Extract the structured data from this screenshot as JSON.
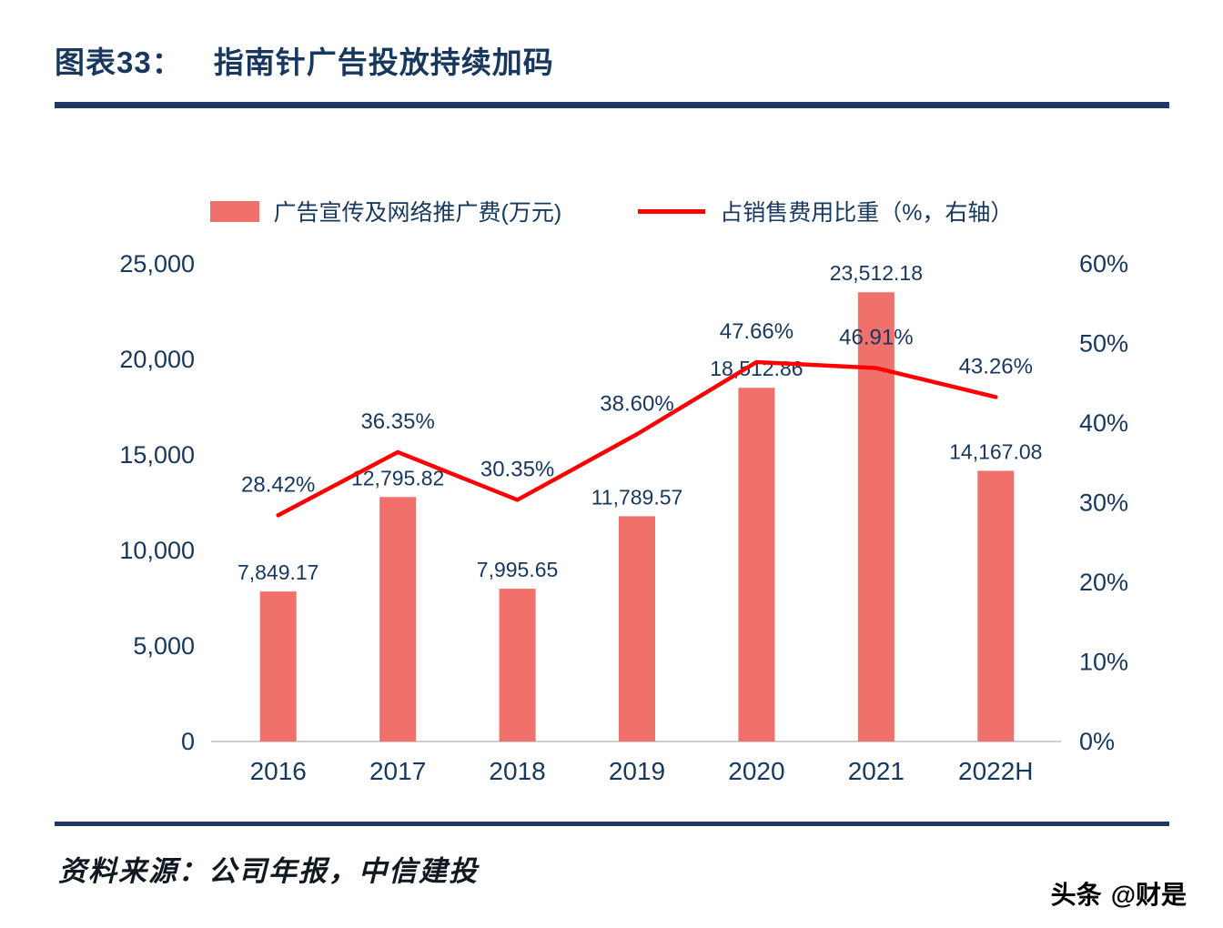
{
  "header": {
    "tag": "图表33：",
    "title": "指南针广告投放持续加码"
  },
  "source": "资料来源：公司年报，中信建投",
  "watermark": {
    "logo": "头条",
    "handle": "@财是"
  },
  "colors": {
    "accent_navy": "#17375E",
    "rule_navy": "#1F3864",
    "bar": "#F0716B",
    "line": "#FF0000",
    "axis_line": "#BDBDBD"
  },
  "chart_data": {
    "type": "bar",
    "title": "指南针广告投放持续加码",
    "categories": [
      "2016",
      "2017",
      "2018",
      "2019",
      "2020",
      "2021",
      "2022H"
    ],
    "series": [
      {
        "name": "广告宣传及网络推广费(万元)",
        "type": "bar",
        "axis": "left",
        "values": [
          7849.17,
          12795.82,
          7995.65,
          11789.57,
          18512.86,
          23512.18,
          14167.08
        ],
        "labels": [
          "7,849.17",
          "12,795.82",
          "7,995.65",
          "11,789.57",
          "18,512.86",
          "23,512.18",
          "14,167.08"
        ]
      },
      {
        "name": "占销售费用比重（%，右轴）",
        "type": "line",
        "axis": "right",
        "values": [
          28.42,
          36.35,
          30.35,
          38.6,
          47.66,
          46.91,
          43.26
        ],
        "labels": [
          "28.42%",
          "36.35%",
          "30.35%",
          "38.60%",
          "47.66%",
          "46.91%",
          "43.26%"
        ]
      }
    ],
    "left_axis": {
      "min": 0,
      "max": 25000,
      "step": 5000,
      "ticks": [
        "0",
        "5,000",
        "10,000",
        "15,000",
        "20,000",
        "25,000"
      ]
    },
    "right_axis": {
      "min": 0,
      "max": 60,
      "step": 10,
      "ticks": [
        "0%",
        "10%",
        "20%",
        "30%",
        "40%",
        "50%",
        "60%"
      ]
    },
    "legend_position": "top",
    "grid": false
  }
}
